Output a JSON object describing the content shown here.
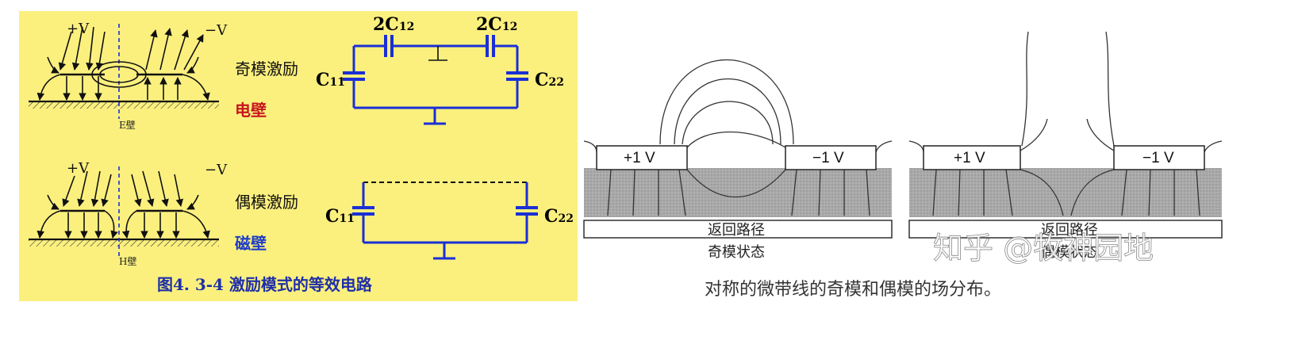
{
  "left_panel": {
    "background": "#fbf07e",
    "odd": {
      "plus_v": "+V",
      "minus_v": "−V",
      "wall_tag": "E壁",
      "mode_label": "奇模激励",
      "wall_label": "电壁",
      "cap_top_left": "2C",
      "cap_top_left_sub": "12",
      "cap_top_right": "2C",
      "cap_top_right_sub": "12",
      "cap_left": "C",
      "cap_left_sub": "11",
      "cap_right": "C",
      "cap_right_sub": "22"
    },
    "even": {
      "plus_v": "+V",
      "minus_v": "−V",
      "wall_tag": "H壁",
      "mode_label": "偶模激励",
      "wall_label": "磁壁",
      "cap_left": "C",
      "cap_left_sub": "11",
      "cap_right": "C",
      "cap_right_sub": "22"
    },
    "caption": "图4. 3-4  激励模式的等效电路",
    "colors": {
      "circuit": "#1a2fd6",
      "red": "#c8141e",
      "blue": "#1e3cc8"
    }
  },
  "right_panel": {
    "odd": {
      "plus_v": "+1 V",
      "minus_v": "−1 V",
      "return_path": "返回路径",
      "state": "奇模状态"
    },
    "even": {
      "plus_v": "+1 V",
      "minus_v": "−1 V",
      "return_path": "返回路径",
      "state": "偶模状态"
    },
    "caption": "对称的微带线的奇模和偶模的场分布。",
    "watermark": "知乎 @牧神园地"
  }
}
